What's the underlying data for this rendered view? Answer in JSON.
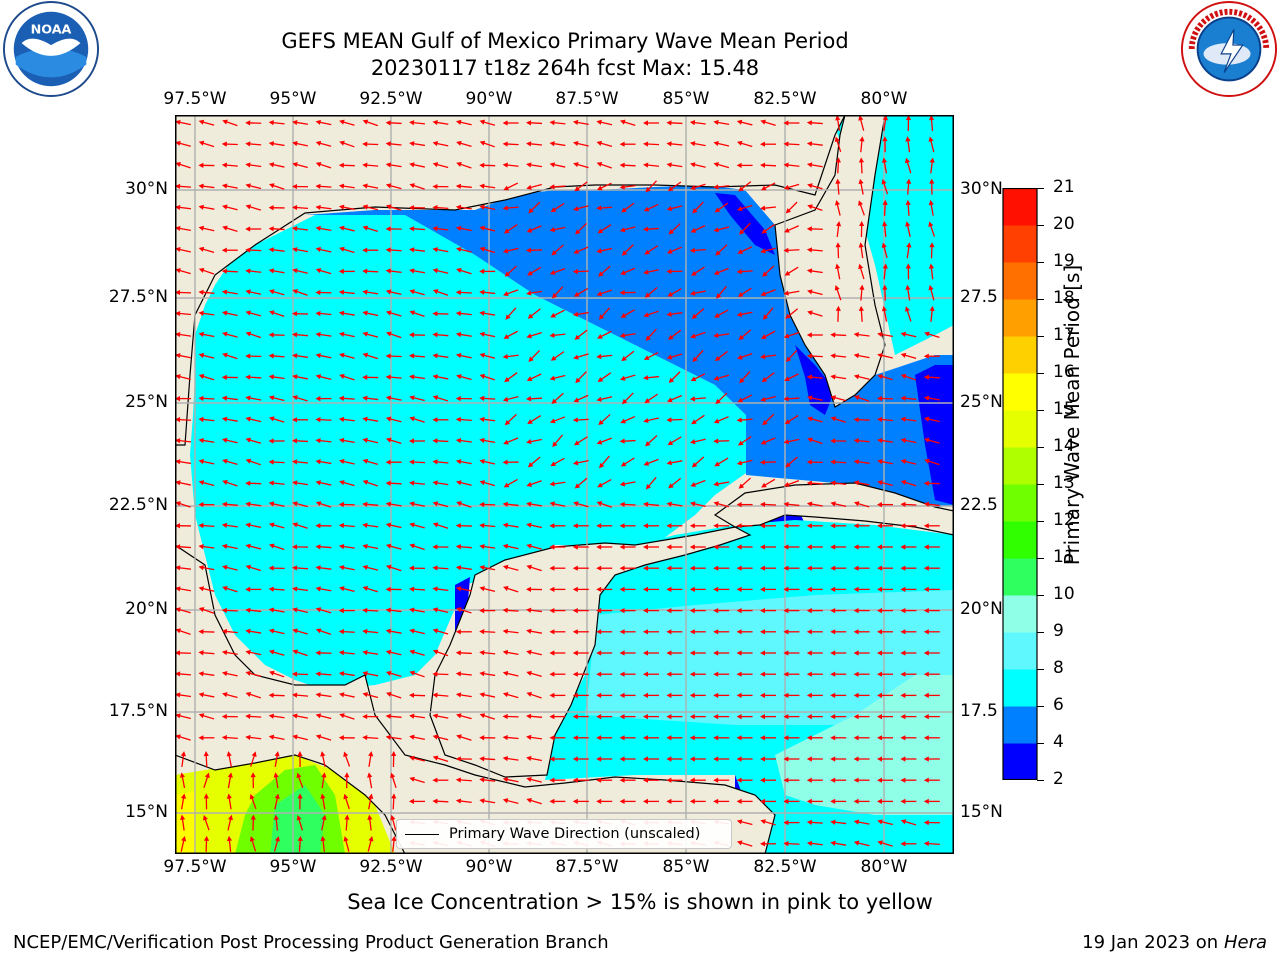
{
  "header": {
    "title_line1": "GEFS MEAN Gulf of Mexico Primary Wave Mean Period",
    "title_line2": "20230117 t18z 264h fcst   Max: 15.48"
  },
  "logos": {
    "left": "noaa-logo",
    "right": "nws-logo"
  },
  "map": {
    "lon_labels": [
      "97.5°W",
      "95°W",
      "92.5°W",
      "90°W",
      "87.5°W",
      "85°W",
      "82.5°W",
      "80°W"
    ],
    "lat_labels": [
      "30°N",
      "27.5°N",
      "25°N",
      "22.5°N",
      "20°N",
      "17.5°N",
      "15°N"
    ],
    "lat_labels_right": [
      "30°N",
      "27.5",
      "25°N",
      "22.5",
      "20°N",
      "17.5",
      "15°N"
    ],
    "colors": {
      "land": "#efecdc",
      "grid": "#b0b0b0",
      "arrow": "#ff0000",
      "coast": "#000000"
    }
  },
  "legend": {
    "label": "Primary Wave Direction (unscaled)"
  },
  "colorbar": {
    "label": "Primary Wave Mean Period [s]",
    "ticks": [
      "2",
      "4",
      "6",
      "8",
      "9",
      "10",
      "11",
      "12",
      "13",
      "14",
      "15",
      "16",
      "17",
      "18",
      "19",
      "20",
      "21"
    ],
    "colors": [
      "#0000ff",
      "#0080ff",
      "#00ffff",
      "#5ff8ff",
      "#8fffe8",
      "#30ff60",
      "#30ff00",
      "#70ff00",
      "#b0ff00",
      "#e6ff00",
      "#ffff00",
      "#ffd000",
      "#ffa000",
      "#ff7000",
      "#ff4000",
      "#ff1000"
    ]
  },
  "note": "Sea Ice Concentration > 15% is shown in pink to yellow",
  "footer": {
    "left": "NCEP/EMC/Verification Post Processing Product Generation Branch",
    "right_date": "19 Jan 2023 on ",
    "right_host": "Hera"
  }
}
